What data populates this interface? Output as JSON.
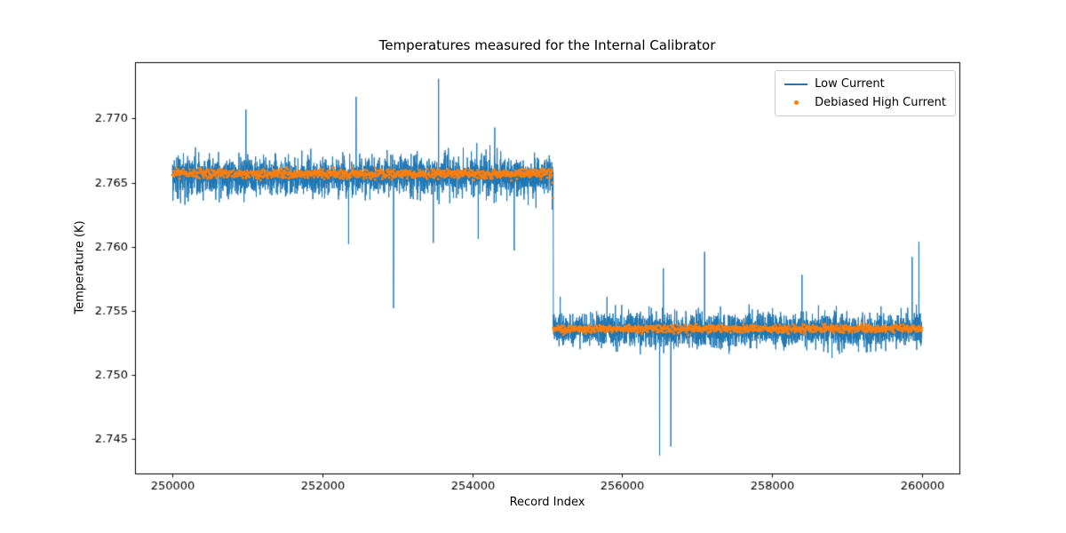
{
  "chart_data": {
    "type": "line",
    "title": "Temperatures measured for the Internal Calibrator",
    "xlabel": "Record Index",
    "ylabel": "Temperature (K)",
    "xlim": [
      249500,
      260500
    ],
    "ylim": [
      2.7423,
      2.7744
    ],
    "x_ticks": [
      250000,
      252000,
      254000,
      256000,
      258000,
      260000
    ],
    "y_ticks": [
      2.745,
      2.75,
      2.755,
      2.76,
      2.765,
      2.77
    ],
    "y_tick_decimals": 3,
    "grid": false,
    "background_color": "#ffffff",
    "axes_color": "#000000",
    "legend": {
      "position": "upper right",
      "entries": [
        {
          "label": "Low Current",
          "color": "#1f77b4",
          "marker": "line"
        },
        {
          "label": "Debiased High Current",
          "color": "#ff7f0e",
          "marker": "dot"
        }
      ]
    },
    "series": [
      {
        "name": "Low Current",
        "color": "#1f77b4",
        "style": "line",
        "sample_step": 2,
        "noise_clip": 0.0026,
        "segments": [
          {
            "x_start": 250000,
            "x_end": 255080,
            "mean": 2.7655,
            "noise_std": 0.00075
          },
          {
            "x_start": 255082,
            "x_end": 260000,
            "mean": 2.7535,
            "noise_std": 0.00065
          }
        ],
        "spikes": [
          [
            250980,
            2.7707
          ],
          [
            252350,
            2.7602
          ],
          [
            252450,
            2.7717
          ],
          [
            252950,
            2.7552
          ],
          [
            253480,
            2.7603
          ],
          [
            253550,
            2.7731
          ],
          [
            254080,
            2.7606
          ],
          [
            254300,
            2.7693
          ],
          [
            254560,
            2.7597
          ],
          [
            256500,
            2.7437
          ],
          [
            256550,
            2.7583
          ],
          [
            256650,
            2.7444
          ],
          [
            257100,
            2.7596
          ],
          [
            258400,
            2.7578
          ],
          [
            259870,
            2.7592
          ],
          [
            259960,
            2.7604
          ]
        ]
      },
      {
        "name": "Debiased High Current",
        "color": "#ff7f0e",
        "style": "dots",
        "sample_step": 5,
        "noise_clip": 0.0006,
        "segments": [
          {
            "x_start": 250000,
            "x_end": 255075,
            "mean": 2.7657,
            "noise_std": 0.00018
          },
          {
            "x_start": 255080,
            "x_end": 260000,
            "mean": 2.7536,
            "noise_std": 0.00015
          }
        ],
        "spikes": [
          [
            255070,
            2.765
          ],
          [
            255075,
            2.7638
          ]
        ]
      }
    ],
    "step_change": {
      "x": 255080,
      "level_before_K": 2.7655,
      "level_after_K": 2.7535
    }
  }
}
